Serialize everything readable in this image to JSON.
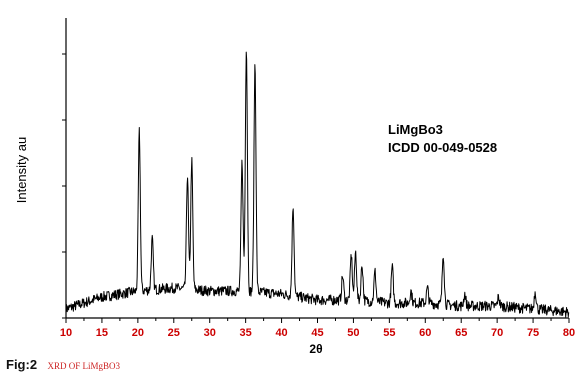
{
  "chart_data": {
    "type": "line",
    "title": "",
    "xlabel": "2θ",
    "ylabel": "Intensity au",
    "xlim": [
      10,
      80
    ],
    "x_ticks": [
      "10",
      "15",
      "20",
      "25",
      "30",
      "35",
      "40",
      "45",
      "50",
      "55",
      "60",
      "65",
      "70",
      "75",
      "80"
    ],
    "grid": false,
    "tick_label_color": "#cc0000",
    "line_color": "#000000",
    "annotation": [
      "LiMgBo3",
      "ICDD 00-049-0528"
    ],
    "series": [
      {
        "peaks": [
          {
            "x": 20.2,
            "y": 0.53
          },
          {
            "x": 22.0,
            "y": 0.17
          },
          {
            "x": 26.9,
            "y": 0.38
          },
          {
            "x": 27.5,
            "y": 0.43
          },
          {
            "x": 34.5,
            "y": 0.43
          },
          {
            "x": 35.1,
            "y": 0.82
          },
          {
            "x": 36.3,
            "y": 0.76
          },
          {
            "x": 41.6,
            "y": 0.3
          },
          {
            "x": 48.5,
            "y": 0.08
          },
          {
            "x": 49.7,
            "y": 0.15
          },
          {
            "x": 50.3,
            "y": 0.16
          },
          {
            "x": 51.2,
            "y": 0.12
          },
          {
            "x": 53.0,
            "y": 0.1
          },
          {
            "x": 55.4,
            "y": 0.12
          },
          {
            "x": 58.0,
            "y": 0.04
          },
          {
            "x": 60.3,
            "y": 0.05
          },
          {
            "x": 62.5,
            "y": 0.17
          },
          {
            "x": 65.5,
            "y": 0.04
          },
          {
            "x": 70.2,
            "y": 0.03
          },
          {
            "x": 75.3,
            "y": 0.06
          }
        ],
        "background": [
          {
            "x": 10,
            "y": 0.03
          },
          {
            "x": 15,
            "y": 0.07
          },
          {
            "x": 20,
            "y": 0.09
          },
          {
            "x": 25,
            "y": 0.1
          },
          {
            "x": 30,
            "y": 0.09
          },
          {
            "x": 35,
            "y": 0.09
          },
          {
            "x": 40,
            "y": 0.08
          },
          {
            "x": 45,
            "y": 0.06
          },
          {
            "x": 50,
            "y": 0.06
          },
          {
            "x": 55,
            "y": 0.05
          },
          {
            "x": 60,
            "y": 0.05
          },
          {
            "x": 65,
            "y": 0.04
          },
          {
            "x": 70,
            "y": 0.04
          },
          {
            "x": 75,
            "y": 0.03
          },
          {
            "x": 80,
            "y": 0.02
          }
        ]
      }
    ]
  },
  "caption": {
    "label": "Fig:2",
    "text": "XRD OF LiMgBO3"
  }
}
